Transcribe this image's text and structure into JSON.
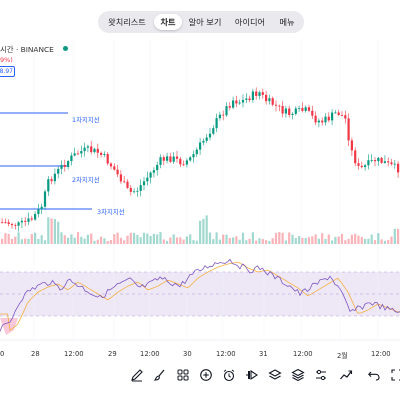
{
  "tabs": [
    {
      "label": "왓치리스트",
      "active": false
    },
    {
      "label": "차트",
      "active": true
    },
    {
      "label": "알아 보기",
      "active": false
    },
    {
      "label": "아이디어",
      "active": false
    },
    {
      "label": "메뉴",
      "active": false
    }
  ],
  "symbol": {
    "label": "시간 · BINANCE",
    "change": "9%)",
    "price_tag": "8.97",
    "live_color": "#089981"
  },
  "levels": [
    {
      "label": "1차지지선"
    },
    {
      "label": "2차지지선"
    },
    {
      "label": "3차지지선"
    }
  ],
  "date_axis": [
    "0",
    "28",
    "12:00",
    "29",
    "12:00",
    "30",
    "12:00",
    "31",
    "12:00",
    "2월",
    "12:00"
  ],
  "toolbar": [
    {
      "icon": "pen-icon"
    },
    {
      "icon": "brush-icon"
    },
    {
      "icon": "apps-icon"
    },
    {
      "icon": "add-circle-icon"
    },
    {
      "icon": "alarm-icon"
    },
    {
      "icon": "replay-icon"
    },
    {
      "icon": "layers-icon"
    },
    {
      "icon": "settings-sliders-icon"
    },
    {
      "icon": "trend-icon"
    },
    {
      "icon": "undo-icon"
    },
    {
      "icon": "fullscreen-icon"
    }
  ],
  "colors": {
    "up": "#089981",
    "down": "#f23645",
    "level_line": "#2962ff",
    "rsi_line": "#7e57c2",
    "rsi_ma": "#f5b041",
    "rsi_band": "#ede7f6"
  }
}
